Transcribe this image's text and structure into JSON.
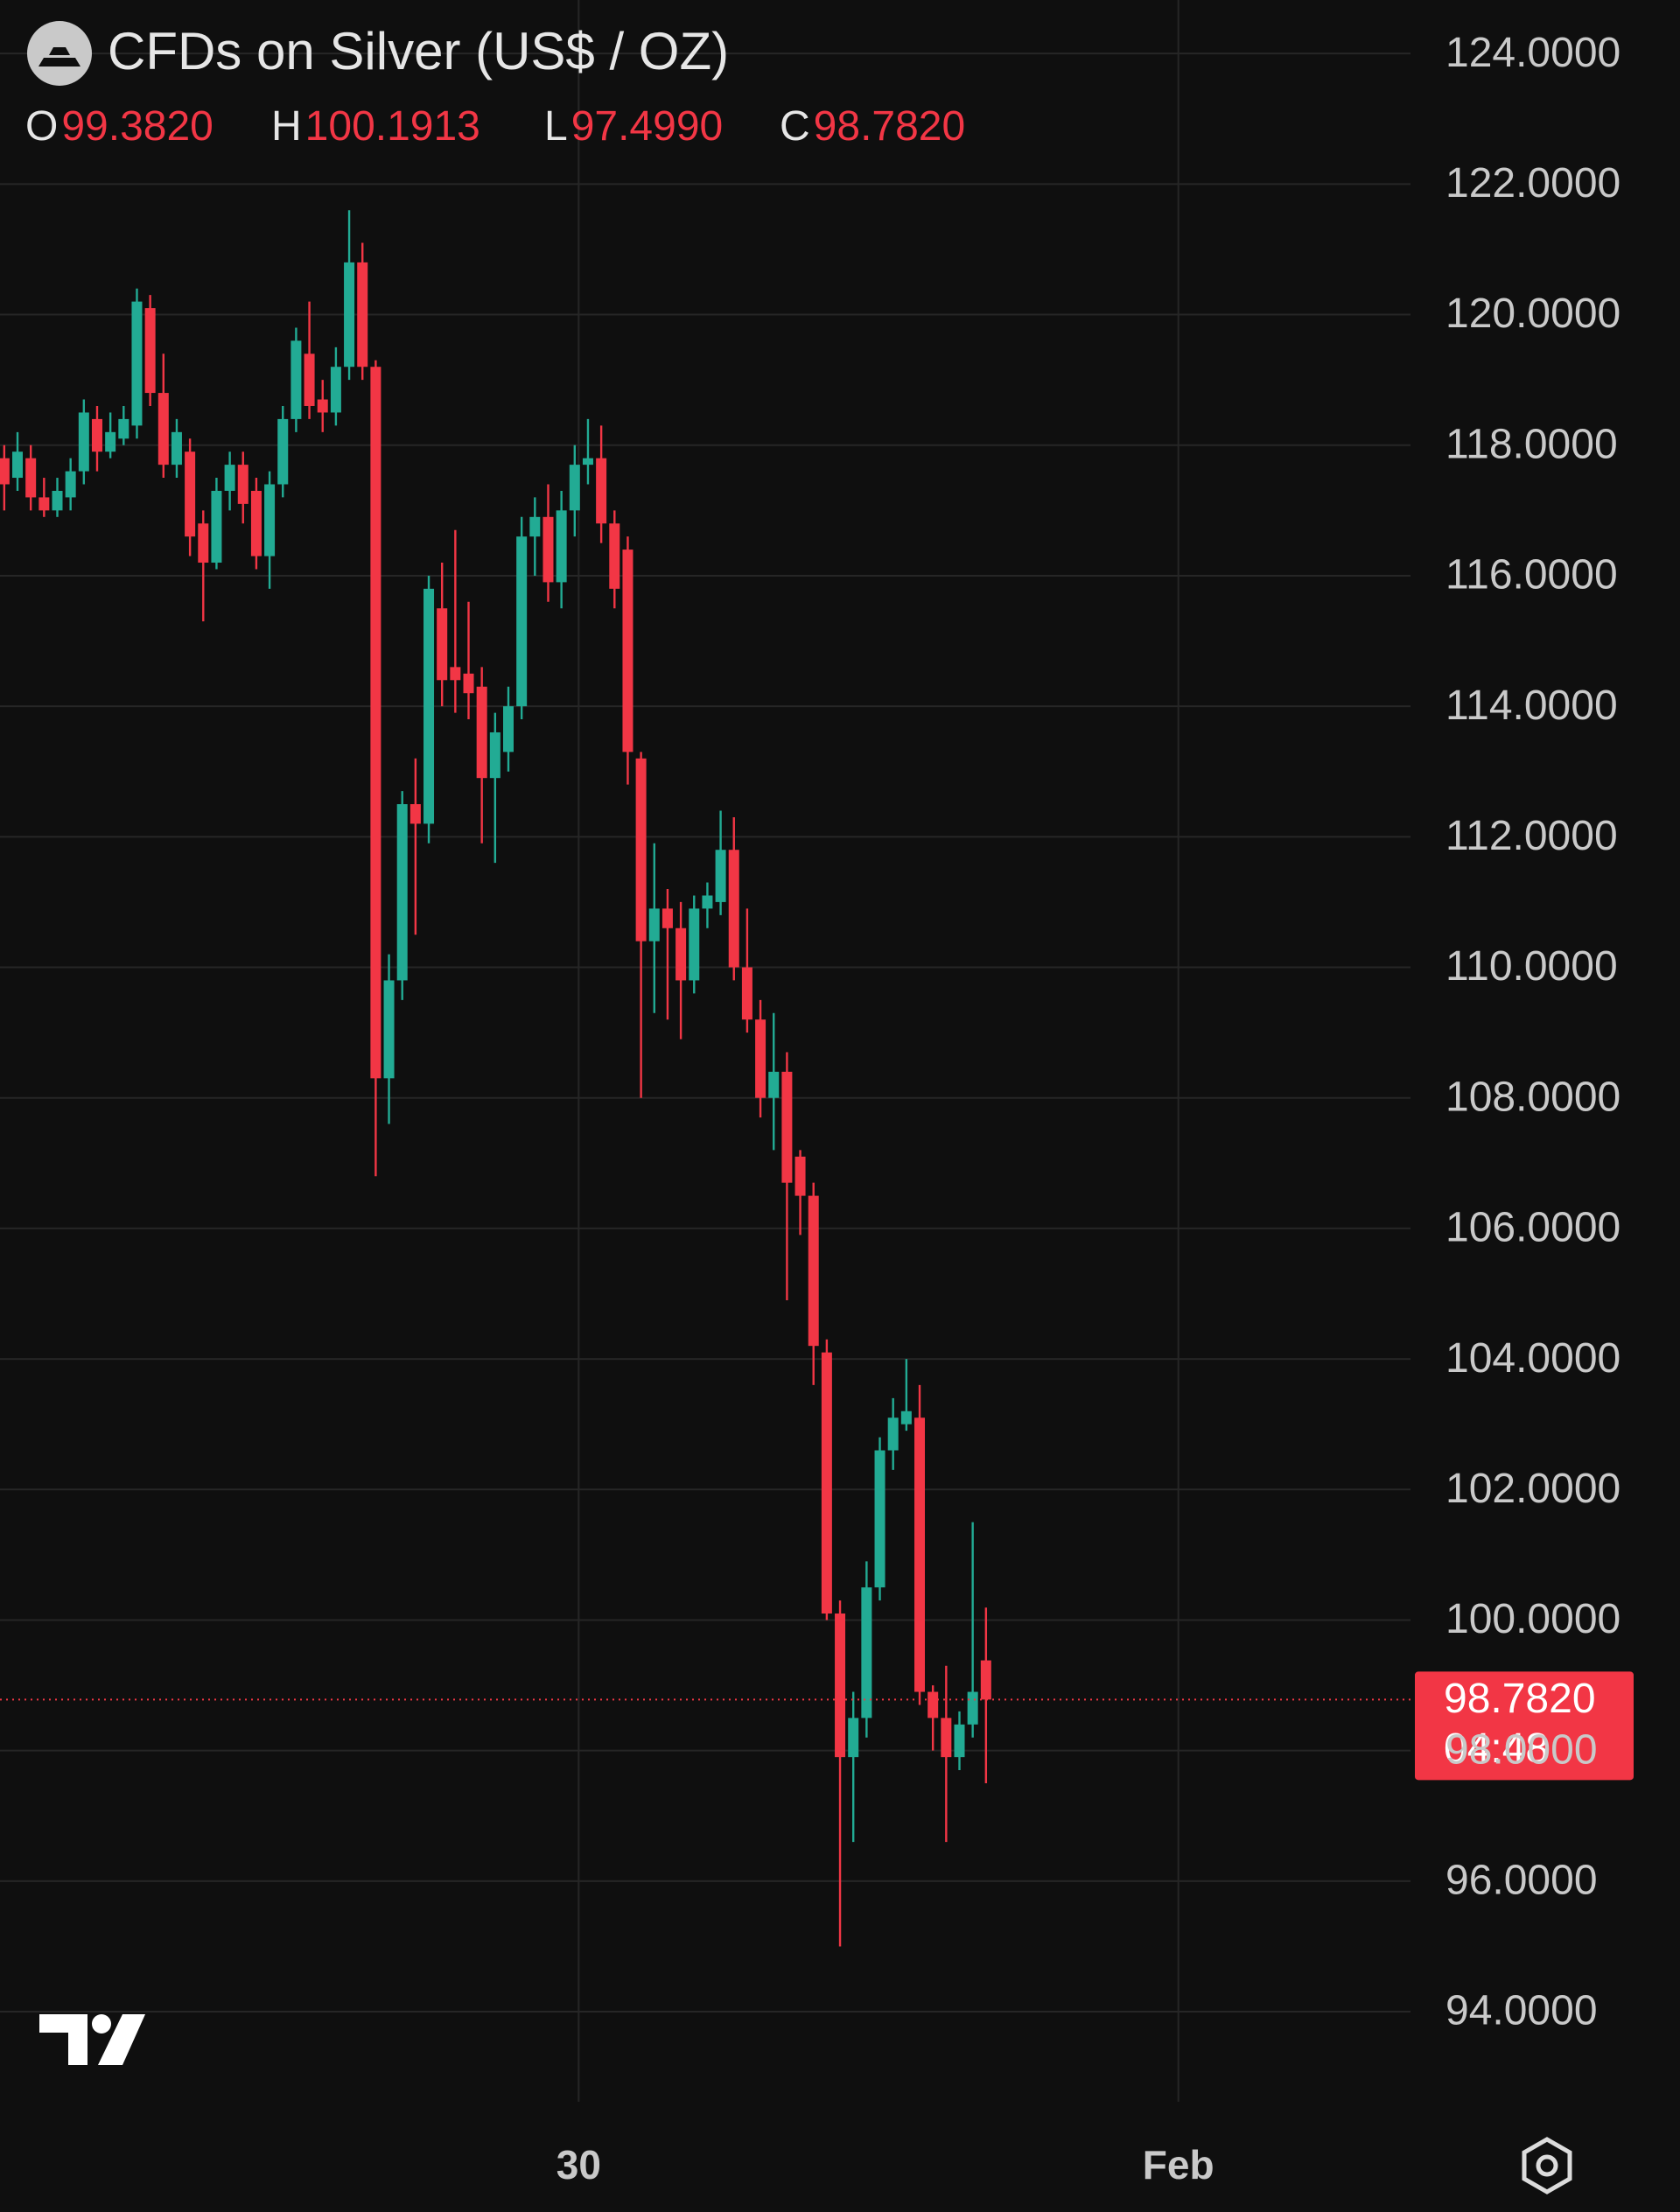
{
  "chart_data": {
    "type": "candlestick",
    "title": "CFDs on Silver (US$ / OZ)",
    "ohlc_legend": [
      {
        "label": "O",
        "value": "99.3820"
      },
      {
        "label": "H",
        "value": "100.1913"
      },
      {
        "label": "L",
        "value": "97.4990"
      },
      {
        "label": "C",
        "value": "98.7820"
      }
    ],
    "up_color": "#22ab94",
    "down_color": "#f23645",
    "grid": true,
    "x": [
      0,
      1,
      2,
      3,
      4,
      5,
      6,
      7,
      8,
      9,
      10,
      11,
      12,
      13,
      14,
      15,
      16,
      17,
      18,
      19,
      20,
      21,
      22,
      23,
      24,
      25,
      26,
      27,
      28,
      29,
      30,
      31,
      32,
      33,
      34,
      35,
      36,
      37,
      38,
      39,
      40,
      41,
      42,
      43,
      44,
      45,
      46,
      47,
      48,
      49,
      50,
      51,
      52,
      53,
      54,
      55,
      56,
      57,
      58,
      59,
      60,
      61,
      62,
      63,
      64,
      65,
      66,
      67,
      68,
      69,
      70,
      71,
      72,
      73,
      74
    ],
    "open": [
      117.8,
      117.5,
      117.8,
      117.2,
      117.0,
      117.2,
      117.6,
      118.4,
      117.9,
      118.1,
      118.3,
      120.1,
      118.8,
      117.7,
      117.9,
      116.8,
      116.2,
      117.3,
      117.7,
      117.3,
      116.3,
      117.4,
      118.4,
      119.4,
      118.7,
      118.5,
      119.2,
      120.8,
      119.2,
      108.3,
      109.8,
      112.5,
      112.2,
      115.5,
      114.6,
      114.5,
      114.3,
      112.9,
      113.3,
      114.0,
      116.6,
      116.9,
      115.9,
      117.0,
      117.7,
      117.8,
      116.8,
      116.4,
      113.2,
      110.4,
      110.9,
      110.6,
      109.8,
      110.9,
      111.0,
      111.8,
      110.0,
      109.2,
      108.0,
      108.4,
      107.1,
      106.5,
      104.1,
      100.1,
      97.9,
      98.5,
      100.5,
      102.6,
      103.0,
      103.1,
      98.9,
      98.5,
      97.9,
      98.4,
      99.382
    ],
    "high": [
      118.0,
      118.2,
      118.0,
      117.5,
      117.5,
      117.8,
      118.7,
      118.6,
      118.5,
      118.6,
      120.4,
      120.3,
      119.4,
      118.4,
      118.1,
      117.0,
      117.5,
      117.9,
      117.9,
      117.5,
      117.6,
      118.6,
      119.8,
      120.2,
      119.0,
      119.5,
      121.6,
      121.1,
      119.3,
      110.2,
      112.7,
      113.2,
      116.0,
      116.2,
      116.7,
      115.6,
      114.6,
      113.9,
      114.3,
      116.9,
      117.2,
      117.4,
      117.3,
      118.0,
      118.4,
      118.3,
      117.0,
      116.6,
      113.3,
      111.9,
      111.2,
      111.0,
      111.1,
      111.3,
      112.4,
      112.3,
      110.9,
      109.5,
      109.3,
      108.7,
      107.2,
      106.7,
      104.3,
      100.3,
      98.9,
      100.9,
      102.8,
      103.4,
      104.0,
      103.6,
      99.0,
      99.3,
      98.6,
      101.5,
      100.1913
    ],
    "low": [
      117.0,
      117.3,
      117.0,
      116.9,
      116.9,
      117.0,
      117.4,
      117.6,
      117.8,
      118.0,
      118.1,
      118.6,
      117.5,
      117.5,
      116.3,
      115.3,
      116.1,
      117.0,
      116.8,
      116.1,
      115.8,
      117.2,
      118.2,
      118.4,
      118.2,
      118.3,
      119.0,
      119.0,
      106.8,
      107.6,
      109.5,
      110.5,
      111.9,
      114.0,
      113.9,
      113.8,
      111.9,
      111.6,
      113.0,
      113.8,
      116.0,
      115.6,
      115.5,
      116.6,
      117.4,
      116.5,
      115.5,
      112.8,
      108.0,
      109.3,
      109.2,
      108.9,
      109.6,
      110.6,
      110.8,
      109.8,
      109.0,
      107.7,
      107.2,
      104.9,
      105.9,
      103.6,
      100.0,
      95.0,
      96.6,
      98.2,
      100.3,
      102.3,
      102.9,
      98.7,
      98.0,
      96.6,
      97.7,
      98.2,
      97.499
    ],
    "close": [
      117.4,
      117.9,
      117.2,
      117.0,
      117.3,
      117.6,
      118.5,
      117.9,
      118.2,
      118.4,
      120.2,
      118.8,
      117.7,
      118.2,
      116.6,
      116.2,
      117.3,
      117.7,
      117.1,
      116.3,
      117.4,
      118.4,
      119.6,
      118.6,
      118.5,
      119.2,
      120.8,
      119.2,
      108.3,
      109.8,
      112.5,
      112.2,
      115.8,
      114.4,
      114.4,
      114.2,
      112.9,
      113.6,
      114.0,
      116.6,
      116.9,
      115.9,
      117.0,
      117.7,
      117.8,
      116.8,
      115.8,
      113.3,
      110.4,
      110.9,
      110.6,
      109.8,
      110.9,
      111.1,
      111.8,
      110.0,
      109.2,
      108.0,
      108.4,
      106.7,
      106.5,
      104.2,
      100.1,
      97.9,
      98.5,
      100.5,
      102.6,
      103.1,
      103.2,
      98.9,
      98.5,
      97.9,
      98.4,
      98.9,
      98.782
    ],
    "last_price": {
      "value": 98.782,
      "label": "98.7820"
    },
    "countdown": "04:48",
    "xlim": [
      -0.32,
      106.0
    ],
    "xticks": [
      {
        "value": 43.3,
        "label": "30"
      },
      {
        "value": 88.5,
        "label": "Feb"
      }
    ],
    "ylim": [
      92.62,
      124.82
    ],
    "yticks": [
      {
        "value": 124,
        "label": "124.0000"
      },
      {
        "value": 122,
        "label": "122.0000"
      },
      {
        "value": 120,
        "label": "120.0000"
      },
      {
        "value": 118,
        "label": "118.0000"
      },
      {
        "value": 116,
        "label": "116.0000"
      },
      {
        "value": 114,
        "label": "114.0000"
      },
      {
        "value": 112,
        "label": "112.0000"
      },
      {
        "value": 110,
        "label": "110.0000"
      },
      {
        "value": 108,
        "label": "108.0000"
      },
      {
        "value": 106,
        "label": "106.0000"
      },
      {
        "value": 104,
        "label": "104.0000"
      },
      {
        "value": 102,
        "label": "102.0000"
      },
      {
        "value": 100,
        "label": "100.0000"
      },
      {
        "value": 98,
        "label": "98.0000"
      },
      {
        "value": 96,
        "label": "96.0000"
      },
      {
        "value": 94,
        "label": "94.0000"
      }
    ]
  }
}
